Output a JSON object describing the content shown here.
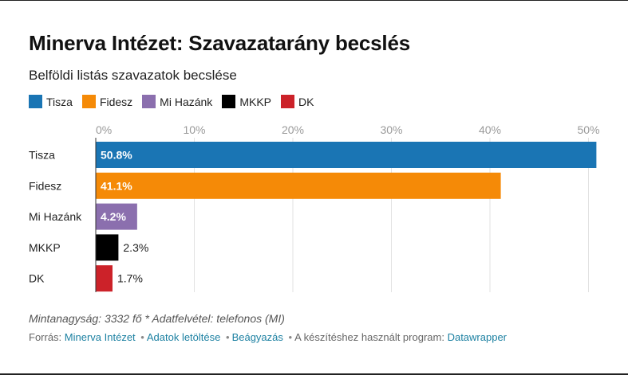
{
  "chart_data": {
    "type": "bar",
    "orientation": "horizontal",
    "title": "Minerva Intézet: Szavazatarány becslés",
    "subtitle": "Belföldi listás szavazatok becslése",
    "categories": [
      "Tisza",
      "Fidesz",
      "Mi Hazánk",
      "MKKP",
      "DK"
    ],
    "values": [
      50.8,
      41.1,
      4.2,
      2.3,
      1.7
    ],
    "value_labels": [
      "50.8%",
      "41.1%",
      "4.2%",
      "2.3%",
      "1.7%"
    ],
    "colors": [
      "#1a75b4",
      "#f58a07",
      "#8b6fae",
      "#000000",
      "#cc2229"
    ],
    "xlim": [
      0,
      51
    ],
    "xticks": [
      0,
      10,
      20,
      30,
      40,
      50
    ],
    "xtick_labels": [
      "0%",
      "10%",
      "20%",
      "30%",
      "40%",
      "50%"
    ],
    "legend": [
      {
        "label": "Tisza",
        "color": "#1a75b4"
      },
      {
        "label": "Fidesz",
        "color": "#f58a07"
      },
      {
        "label": "Mi Hazánk",
        "color": "#8b6fae"
      },
      {
        "label": "MKKP",
        "color": "#000000"
      },
      {
        "label": "DK",
        "color": "#cc2229"
      }
    ],
    "grid": true,
    "legend_position": "top-left"
  },
  "note": "Mintanagyság: 3332 fő * Adatfelvétel: telefonos (MI)",
  "footer": {
    "prefix": "Forrás:",
    "source": "Minerva Intézet",
    "download": "Adatok letöltése",
    "embed": "Beágyazás",
    "tool_prefix": "A készítéshez használt program:",
    "tool": "Datawrapper"
  }
}
